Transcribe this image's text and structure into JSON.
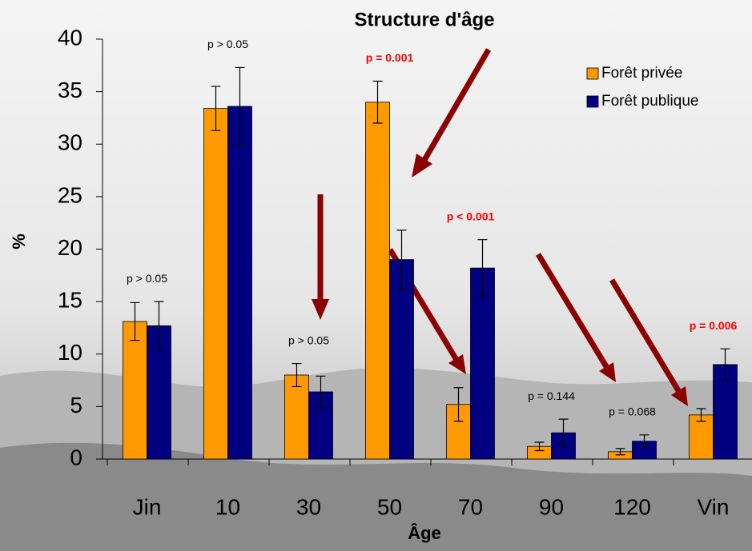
{
  "chart_data": {
    "type": "bar",
    "title": "Structure d'âge",
    "x_label": "Âge",
    "y_label": "%",
    "categories": [
      "Jin",
      "10",
      "30",
      "50",
      "70",
      "90",
      "120",
      "Vin"
    ],
    "series": [
      {
        "name": "Forêt privée",
        "color": "#ff9900",
        "values": [
          13.1,
          33.4,
          8.0,
          34.0,
          5.2,
          1.2,
          0.7,
          4.2
        ],
        "errors": [
          1.8,
          2.1,
          1.1,
          2.0,
          1.6,
          0.4,
          0.3,
          0.6
        ]
      },
      {
        "name": "Forêt publique",
        "color": "#000080",
        "values": [
          12.7,
          33.6,
          6.4,
          19.0,
          18.2,
          2.5,
          1.7,
          9.0
        ],
        "errors": [
          2.3,
          3.7,
          1.5,
          2.8,
          2.7,
          1.3,
          0.6,
          1.5
        ]
      }
    ],
    "annotations": [
      {
        "text": "p > 0.05",
        "color": "#000000",
        "bold": false
      },
      {
        "text": "p > 0.05",
        "color": "#000000",
        "bold": false
      },
      {
        "text": "p > 0.05",
        "color": "#000000",
        "bold": false
      },
      {
        "text": "p = 0.001",
        "color": "#ff0000",
        "bold": true
      },
      {
        "text": "p < 0.001",
        "color": "#ff0000",
        "bold": true
      },
      {
        "text": "p = 0.144",
        "color": "#000000",
        "bold": false
      },
      {
        "text": "p = 0.068",
        "color": "#000000",
        "bold": false
      },
      {
        "text": "p = 0.006",
        "color": "#ff0000",
        "bold": true
      }
    ],
    "ylim": [
      0,
      40
    ],
    "yticks": [
      0,
      5,
      10,
      15,
      20,
      25,
      30,
      35,
      40
    ],
    "legend_position": "upper right"
  }
}
